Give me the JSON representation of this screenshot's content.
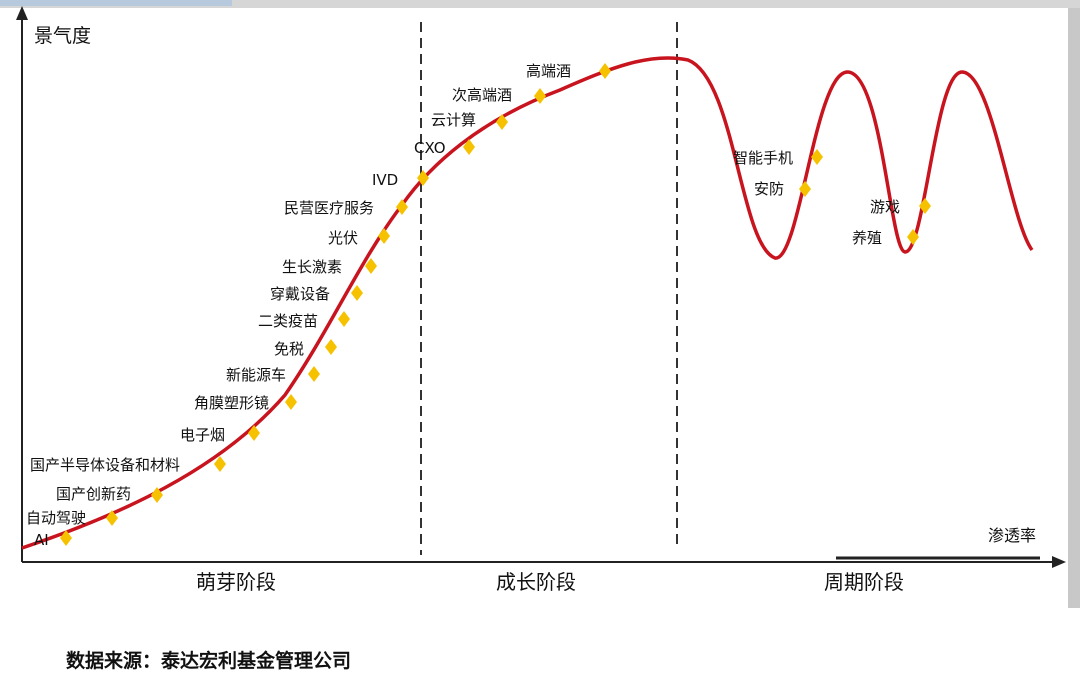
{
  "y_axis_label": "景气度",
  "x_axis_label": "渗透率",
  "stages": [
    "萌芽阶段",
    "成长阶段",
    "周期阶段"
  ],
  "industries": {
    "growth_curve": [
      "AI",
      "自动驾驶",
      "国产创新药",
      "国产半导体设备和材料",
      "电子烟",
      "角膜塑形镜",
      "新能源车",
      "免税",
      "二类疫苗",
      "穿戴设备",
      "生长激素",
      "光伏",
      "民营医疗服务",
      "IVD",
      "CXO",
      "云计算",
      "次高端酒",
      "高端酒"
    ],
    "cyclical": [
      "智能手机",
      "安防",
      "游戏",
      "养殖"
    ]
  },
  "colors": {
    "curve": "#c8141e",
    "marker": "#f6c200",
    "axis": "#222222",
    "divider": "#333333"
  },
  "source_note": "数据来源：泰达宏利基金管理公司"
}
